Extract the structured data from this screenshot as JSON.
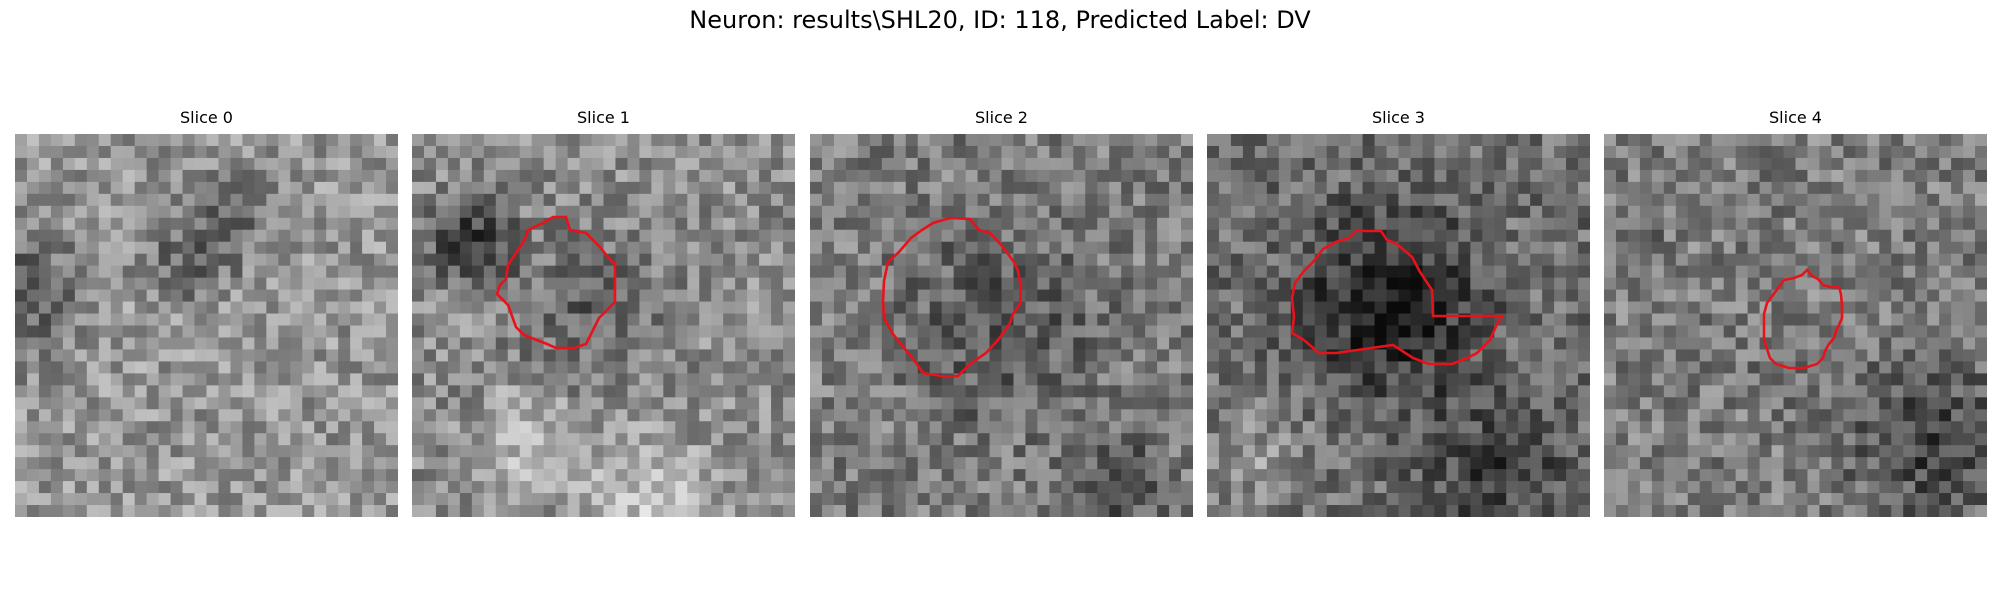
{
  "title": "Neuron: results\\SHL20, ID: 118, Predicted Label: DV",
  "contour_color": "#e8121b",
  "slices": [
    {
      "label": "Slice 0",
      "has_contour": false,
      "mean_tone": 150
    },
    {
      "label": "Slice 1",
      "has_contour": true,
      "mean_tone": 140
    },
    {
      "label": "Slice 2",
      "has_contour": true,
      "mean_tone": 125
    },
    {
      "label": "Slice 3",
      "has_contour": true,
      "mean_tone": 110
    },
    {
      "label": "Slice 4",
      "has_contour": true,
      "mean_tone": 125
    }
  ]
}
